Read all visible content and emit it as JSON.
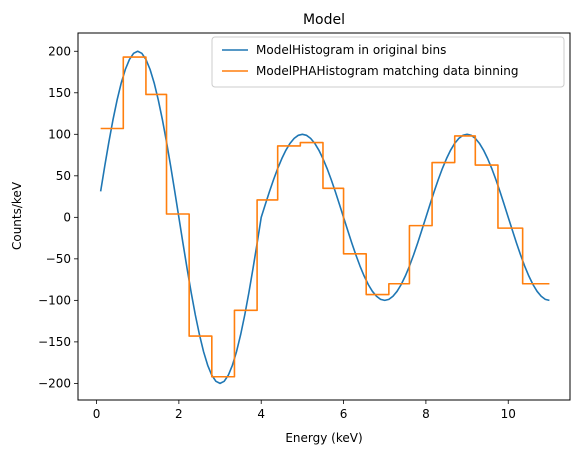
{
  "chart_data": {
    "type": "line",
    "title": "Model",
    "xlabel": "Energy (keV)",
    "ylabel": "Counts/keV",
    "xlim": [
      -0.45,
      11.5
    ],
    "ylim": [
      -220,
      222
    ],
    "xticks": [
      0,
      2,
      4,
      6,
      8,
      10
    ],
    "yticks": [
      -200,
      -150,
      -100,
      -50,
      0,
      50,
      100,
      150,
      200
    ],
    "xtick_labels": [
      "0",
      "2",
      "4",
      "6",
      "8",
      "10"
    ],
    "ytick_labels": [
      "−200",
      "−150",
      "−100",
      "−50",
      "0",
      "50",
      "100",
      "150",
      "200"
    ],
    "grid": false,
    "legend_position": "top-right",
    "series": [
      {
        "name": "ModelHistogram in original bins",
        "kind": "line",
        "color": "#1f77b4",
        "x": [
          0.1,
          0.2,
          0.3,
          0.4,
          0.5,
          0.6,
          0.7,
          0.8,
          0.9,
          1.0,
          1.1,
          1.2,
          1.3,
          1.4,
          1.5,
          1.6,
          1.7,
          1.8,
          1.9,
          2.0,
          2.1,
          2.2,
          2.3,
          2.4,
          2.5,
          2.6,
          2.7,
          2.8,
          2.9,
          3.0,
          3.1,
          3.2,
          3.3,
          3.4,
          3.5,
          3.6,
          3.7,
          3.8,
          3.9,
          4.0,
          4.1,
          4.2,
          4.3,
          4.4,
          4.5,
          4.6,
          4.7,
          4.8,
          4.9,
          5.0,
          5.1,
          5.2,
          5.3,
          5.4,
          5.5,
          5.6,
          5.7,
          5.8,
          5.9,
          6.0,
          6.1,
          6.2,
          6.3,
          6.4,
          6.5,
          6.6,
          6.7,
          6.8,
          6.9,
          7.0,
          7.1,
          7.2,
          7.3,
          7.4,
          7.5,
          7.6,
          7.7,
          7.8,
          7.9,
          8.0,
          8.1,
          8.2,
          8.3,
          8.4,
          8.5,
          8.6,
          8.7,
          8.8,
          8.9,
          9.0,
          9.1,
          9.2,
          9.3,
          9.4,
          9.5,
          9.6,
          9.7,
          9.8,
          9.9,
          10.0,
          10.1,
          10.2,
          10.3,
          10.4,
          10.5,
          10.6,
          10.7,
          10.8,
          10.9,
          11.0
        ],
        "y": [
          31.3,
          61.8,
          90.8,
          117.6,
          141.4,
          161.8,
          178.2,
          190.2,
          197.5,
          200.0,
          197.5,
          190.2,
          178.2,
          161.8,
          141.4,
          117.6,
          90.8,
          61.8,
          31.3,
          0.0,
          -31.3,
          -61.8,
          -90.8,
          -117.6,
          -141.4,
          -161.8,
          -178.2,
          -190.2,
          -197.5,
          -200.0,
          -197.5,
          -190.2,
          -178.2,
          -161.8,
          -141.4,
          -117.6,
          -90.8,
          -61.8,
          -31.3,
          0.0,
          15.6,
          30.9,
          45.4,
          58.8,
          70.7,
          80.9,
          89.1,
          95.1,
          98.8,
          100.0,
          98.8,
          95.1,
          89.1,
          80.9,
          70.7,
          58.8,
          45.4,
          30.9,
          15.6,
          0.0,
          -15.6,
          -30.9,
          -45.4,
          -58.8,
          -70.7,
          -80.9,
          -89.1,
          -95.1,
          -98.8,
          -100.0,
          -98.8,
          -95.1,
          -89.1,
          -80.9,
          -70.7,
          -58.8,
          -45.4,
          -30.9,
          -15.6,
          0.0,
          15.6,
          30.9,
          45.4,
          58.8,
          70.7,
          80.9,
          89.1,
          95.1,
          98.8,
          100.0,
          98.8,
          95.1,
          89.1,
          80.9,
          70.7,
          58.8,
          45.4,
          30.9,
          15.6,
          0.0,
          -15.6,
          -30.9,
          -45.4,
          -58.8,
          -70.7,
          -80.9,
          -89.1,
          -95.1,
          -98.8,
          -100.0
        ]
      },
      {
        "name": "ModelPHAHistogram matching data binning",
        "kind": "step",
        "color": "#ff7f0e",
        "bin_edges": [
          0.1,
          0.65,
          1.2,
          1.7,
          2.25,
          2.8,
          3.35,
          3.9,
          4.4,
          4.95,
          5.5,
          6.0,
          6.55,
          7.1,
          7.6,
          8.15,
          8.7,
          9.2,
          9.75,
          10.35,
          11.0
        ],
        "values": [
          107,
          193,
          148,
          4,
          -143,
          -192,
          -112,
          21,
          86,
          90,
          35,
          -44,
          -93,
          -80,
          -10,
          66,
          98,
          63,
          -13,
          -80
        ]
      }
    ]
  }
}
